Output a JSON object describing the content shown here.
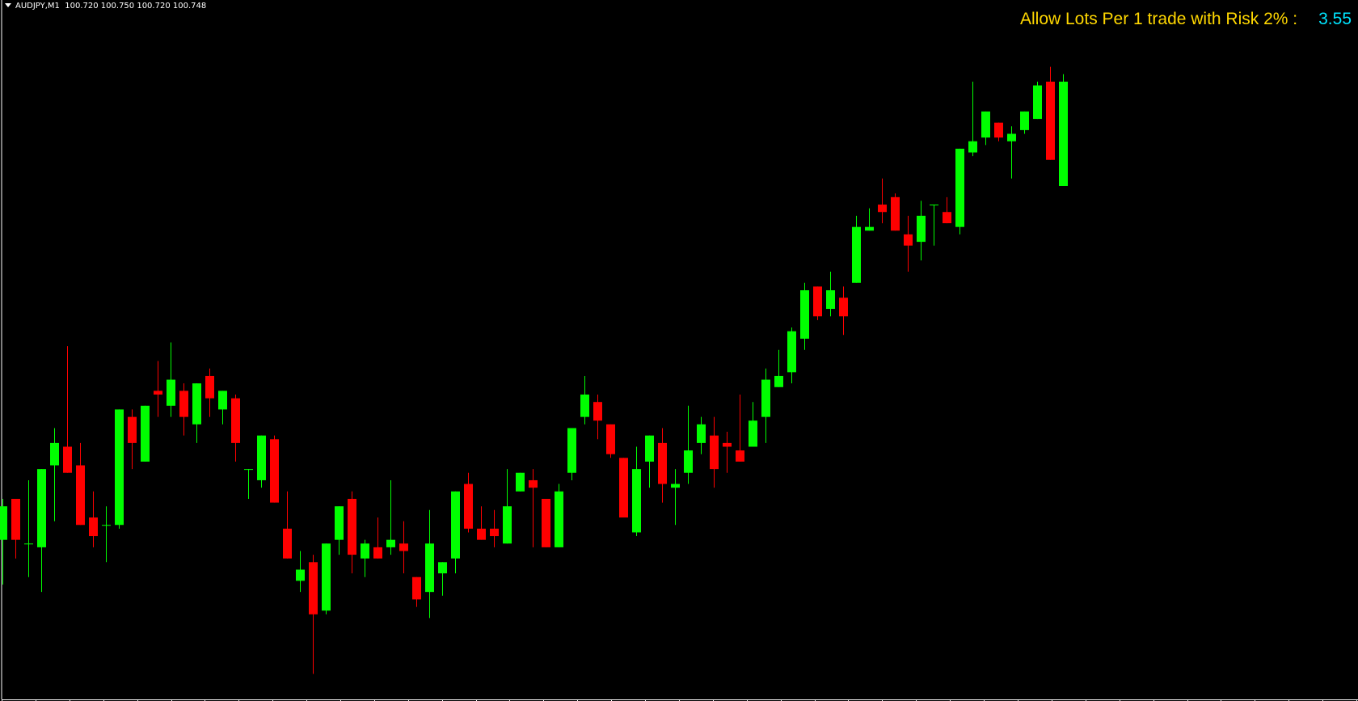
{
  "header": {
    "symbol_timeframe": "AUDJPY,M1",
    "ohlc_text": "100.720 100.750 100.720 100.748",
    "menu_icon": "triangle-down-icon"
  },
  "lots_panel": {
    "label": "Allow Lots Per 1 trade with Risk 2% :",
    "value": "3.55",
    "label_color": "#FFD700",
    "value_color": "#00E5FF"
  },
  "colors": {
    "background": "#000000",
    "bull": "#00FF00",
    "bear": "#FF0000",
    "axis": "#FFFFFF"
  },
  "chart_data": {
    "type": "candlestick",
    "symbol": "AUDJPY",
    "timeframe": "M1",
    "grid": false,
    "candles": [
      [
        100.625,
        100.636,
        100.613,
        100.634
      ],
      [
        100.636,
        100.636,
        100.62,
        100.625
      ],
      [
        100.624,
        100.641,
        100.615,
        100.624
      ],
      [
        100.623,
        100.644,
        100.611,
        100.644
      ],
      [
        100.645,
        100.655,
        100.63,
        100.651
      ],
      [
        100.65,
        100.677,
        100.643,
        100.643
      ],
      [
        100.645,
        100.651,
        100.629,
        100.629
      ],
      [
        100.631,
        100.638,
        100.623,
        100.626
      ],
      [
        100.629,
        100.634,
        100.619,
        100.629
      ],
      [
        100.629,
        100.66,
        100.628,
        100.66
      ],
      [
        100.658,
        100.66,
        100.644,
        100.651
      ],
      [
        100.646,
        100.661,
        100.646,
        100.661
      ],
      [
        100.665,
        100.673,
        100.658,
        100.664
      ],
      [
        100.661,
        100.678,
        100.658,
        100.668
      ],
      [
        100.665,
        100.667,
        100.653,
        100.658
      ],
      [
        100.656,
        100.667,
        100.651,
        100.667
      ],
      [
        100.669,
        100.671,
        100.658,
        100.663
      ],
      [
        100.66,
        100.665,
        100.656,
        100.665
      ],
      [
        100.663,
        100.664,
        100.646,
        100.651
      ],
      [
        100.644,
        100.644,
        100.636,
        100.644
      ],
      [
        100.641,
        100.653,
        100.639,
        100.653
      ],
      [
        100.652,
        100.653,
        100.635,
        100.635
      ],
      [
        100.628,
        100.638,
        100.62,
        100.62
      ],
      [
        100.614,
        100.622,
        100.611,
        100.617
      ],
      [
        100.619,
        100.621,
        100.589,
        100.605
      ],
      [
        100.606,
        100.624,
        100.605,
        100.624
      ],
      [
        100.625,
        100.634,
        100.621,
        100.634
      ],
      [
        100.636,
        100.638,
        100.616,
        100.621
      ],
      [
        100.62,
        100.625,
        100.615,
        100.624
      ],
      [
        100.623,
        100.631,
        100.62,
        100.62
      ],
      [
        100.623,
        100.641,
        100.621,
        100.625
      ],
      [
        100.624,
        100.63,
        100.616,
        100.622
      ],
      [
        100.615,
        100.615,
        100.607,
        100.609
      ],
      [
        100.611,
        100.633,
        100.604,
        100.624
      ],
      [
        100.616,
        100.619,
        100.61,
        100.619
      ],
      [
        100.62,
        100.638,
        100.616,
        100.638
      ],
      [
        100.64,
        100.643,
        100.627,
        100.628
      ],
      [
        100.628,
        100.634,
        100.625,
        100.625
      ],
      [
        100.628,
        100.633,
        100.623,
        100.626
      ],
      [
        100.624,
        100.644,
        100.624,
        100.634
      ],
      [
        100.638,
        100.643,
        100.638,
        100.643
      ],
      [
        100.641,
        100.644,
        100.623,
        100.639
      ],
      [
        100.636,
        100.636,
        100.623,
        100.623
      ],
      [
        100.623,
        100.64,
        100.623,
        100.638
      ],
      [
        100.643,
        100.655,
        100.641,
        100.655
      ],
      [
        100.658,
        100.669,
        100.656,
        100.664
      ],
      [
        100.662,
        100.664,
        100.652,
        100.657
      ],
      [
        100.656,
        100.656,
        100.647,
        100.648
      ],
      [
        100.647,
        100.647,
        100.631,
        100.631
      ],
      [
        100.627,
        100.65,
        100.626,
        100.644
      ],
      [
        100.646,
        100.653,
        100.639,
        100.653
      ],
      [
        100.651,
        100.655,
        100.635,
        100.64
      ],
      [
        100.639,
        100.644,
        100.629,
        100.64
      ],
      [
        100.643,
        100.661,
        100.64,
        100.649
      ],
      [
        100.651,
        100.658,
        100.648,
        100.656
      ],
      [
        100.653,
        100.658,
        100.639,
        100.644
      ],
      [
        100.651,
        100.654,
        100.643,
        100.65
      ],
      [
        100.649,
        100.664,
        100.646,
        100.646
      ],
      [
        100.65,
        100.662,
        100.65,
        100.657
      ],
      [
        100.658,
        100.671,
        100.651,
        100.668
      ],
      [
        100.666,
        100.676,
        100.666,
        100.669
      ],
      [
        100.67,
        100.682,
        100.667,
        100.681
      ],
      [
        100.679,
        100.694,
        100.676,
        100.692
      ],
      [
        100.693,
        100.693,
        100.684,
        100.685
      ],
      [
        100.687,
        100.697,
        100.685,
        100.692
      ],
      [
        100.69,
        100.693,
        100.68,
        100.685
      ],
      [
        100.694,
        100.712,
        100.694,
        100.709
      ],
      [
        100.708,
        100.714,
        100.708,
        100.709
      ],
      [
        100.715,
        100.722,
        100.71,
        100.713
      ],
      [
        100.717,
        100.718,
        100.708,
        100.708
      ],
      [
        100.707,
        100.712,
        100.697,
        100.704
      ],
      [
        100.705,
        100.716,
        100.7,
        100.712
      ],
      [
        100.715,
        100.715,
        100.704,
        100.715
      ],
      [
        100.713,
        100.717,
        100.71,
        100.71
      ],
      [
        100.709,
        100.73,
        100.707,
        100.73
      ],
      [
        100.729,
        100.748,
        100.728,
        100.732
      ],
      [
        100.733,
        100.74,
        100.731,
        100.74
      ],
      [
        100.737,
        100.737,
        100.732,
        100.733
      ],
      [
        100.732,
        100.736,
        100.722,
        100.734
      ],
      [
        100.735,
        100.74,
        100.734,
        100.74
      ],
      [
        100.738,
        100.748,
        100.738,
        100.747
      ],
      [
        100.748,
        100.752,
        100.727,
        100.727
      ],
      [
        100.72,
        100.75,
        100.72,
        100.748
      ]
    ],
    "candle_format": [
      "open",
      "high",
      "low",
      "close"
    ]
  }
}
